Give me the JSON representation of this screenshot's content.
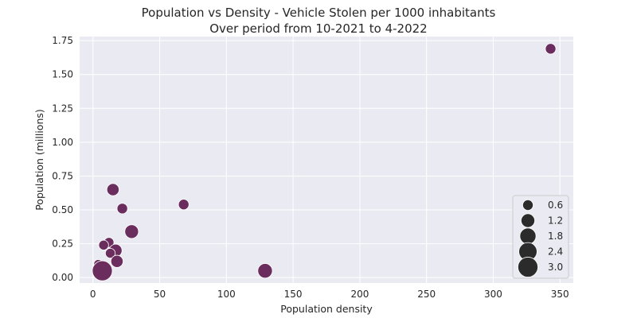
{
  "chart_data": {
    "type": "scatter",
    "title": "Population vs Density - Vehicle Stolen per 1000 inhabitants",
    "subtitle": "Over period from 10-2021 to 4-2022",
    "xlabel": "Population density",
    "ylabel": "Population (millions)",
    "xlim": [
      -10,
      360
    ],
    "ylim": [
      -0.04,
      1.78
    ],
    "xticks": [
      0,
      50,
      100,
      150,
      200,
      250,
      300,
      350
    ],
    "xtick_labels": [
      "0",
      "50",
      "100",
      "150",
      "200",
      "250",
      "300",
      "350"
    ],
    "yticks": [
      0.0,
      0.25,
      0.5,
      0.75,
      1.0,
      1.25,
      1.5,
      1.75
    ],
    "ytick_labels": [
      "0.00",
      "0.25",
      "0.50",
      "0.75",
      "1.00",
      "1.25",
      "1.50",
      "1.75"
    ],
    "grid": true,
    "background": "#eaeaf2",
    "point_color": "#6b2d5e",
    "legend_color": "#2b2b2b",
    "legend_position": "lower-right",
    "legend": {
      "sizes": [
        0.6,
        1.2,
        1.8,
        2.4,
        3.0
      ],
      "labels": [
        "0.6",
        "1.2",
        "1.8",
        "2.4",
        "3.0"
      ]
    },
    "points": [
      {
        "x": 343,
        "y": 1.69,
        "size": 0.6
      },
      {
        "x": 15,
        "y": 0.65,
        "size": 0.9
      },
      {
        "x": 68,
        "y": 0.54,
        "size": 0.6
      },
      {
        "x": 22,
        "y": 0.51,
        "size": 0.6
      },
      {
        "x": 29,
        "y": 0.34,
        "size": 1.2
      },
      {
        "x": 12,
        "y": 0.26,
        "size": 0.5
      },
      {
        "x": 8,
        "y": 0.24,
        "size": 0.5
      },
      {
        "x": 17,
        "y": 0.2,
        "size": 1.0
      },
      {
        "x": 13,
        "y": 0.18,
        "size": 0.5
      },
      {
        "x": 18,
        "y": 0.12,
        "size": 0.9
      },
      {
        "x": 4,
        "y": 0.1,
        "size": 0.4
      },
      {
        "x": 7,
        "y": 0.05,
        "size": 3.0
      },
      {
        "x": 129,
        "y": 0.05,
        "size": 1.4
      }
    ]
  }
}
